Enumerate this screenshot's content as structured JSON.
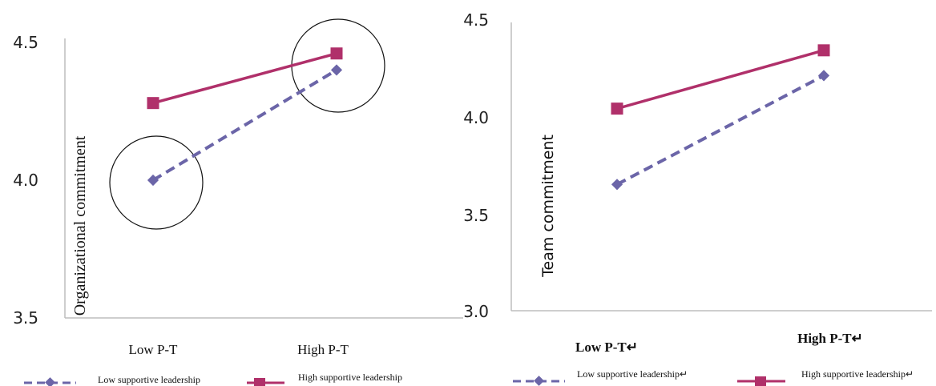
{
  "chart_data": [
    {
      "type": "line",
      "ylabel": "Organizational commitment",
      "categories": [
        "Low P-T",
        "High P-T"
      ],
      "ylim": [
        3.5,
        4.5
      ],
      "yticks": [
        "3.5",
        "4.0",
        "4.5"
      ],
      "grid": false,
      "legend_position": "bottom",
      "highlight_circles": [
        "Low P-T",
        "High P-T"
      ],
      "series": [
        {
          "name": "Low supportive leadership",
          "values": [
            4.0,
            4.4
          ],
          "color": "#6b65a8",
          "dash": "dashed",
          "marker": "diamond"
        },
        {
          "name": "High supportive leadership",
          "values": [
            4.28,
            4.46
          ],
          "color": "#b0306a",
          "dash": "solid",
          "marker": "square"
        }
      ]
    },
    {
      "type": "line",
      "ylabel": "Team commitment",
      "categories": [
        "Low P-T↵",
        "High P-T↵"
      ],
      "ylim": [
        3.0,
        4.5
      ],
      "yticks": [
        "3.0",
        "3.5",
        "4.0",
        "4.5"
      ],
      "grid": false,
      "legend_position": "bottom",
      "series": [
        {
          "name": "Low supportive leadership↵",
          "values": [
            3.65,
            4.21
          ],
          "color": "#6b65a8",
          "dash": "dashed",
          "marker": "diamond"
        },
        {
          "name": "High supportive leadership↵",
          "values": [
            4.04,
            4.34
          ],
          "color": "#b0306a",
          "dash": "solid",
          "marker": "square"
        }
      ]
    }
  ]
}
